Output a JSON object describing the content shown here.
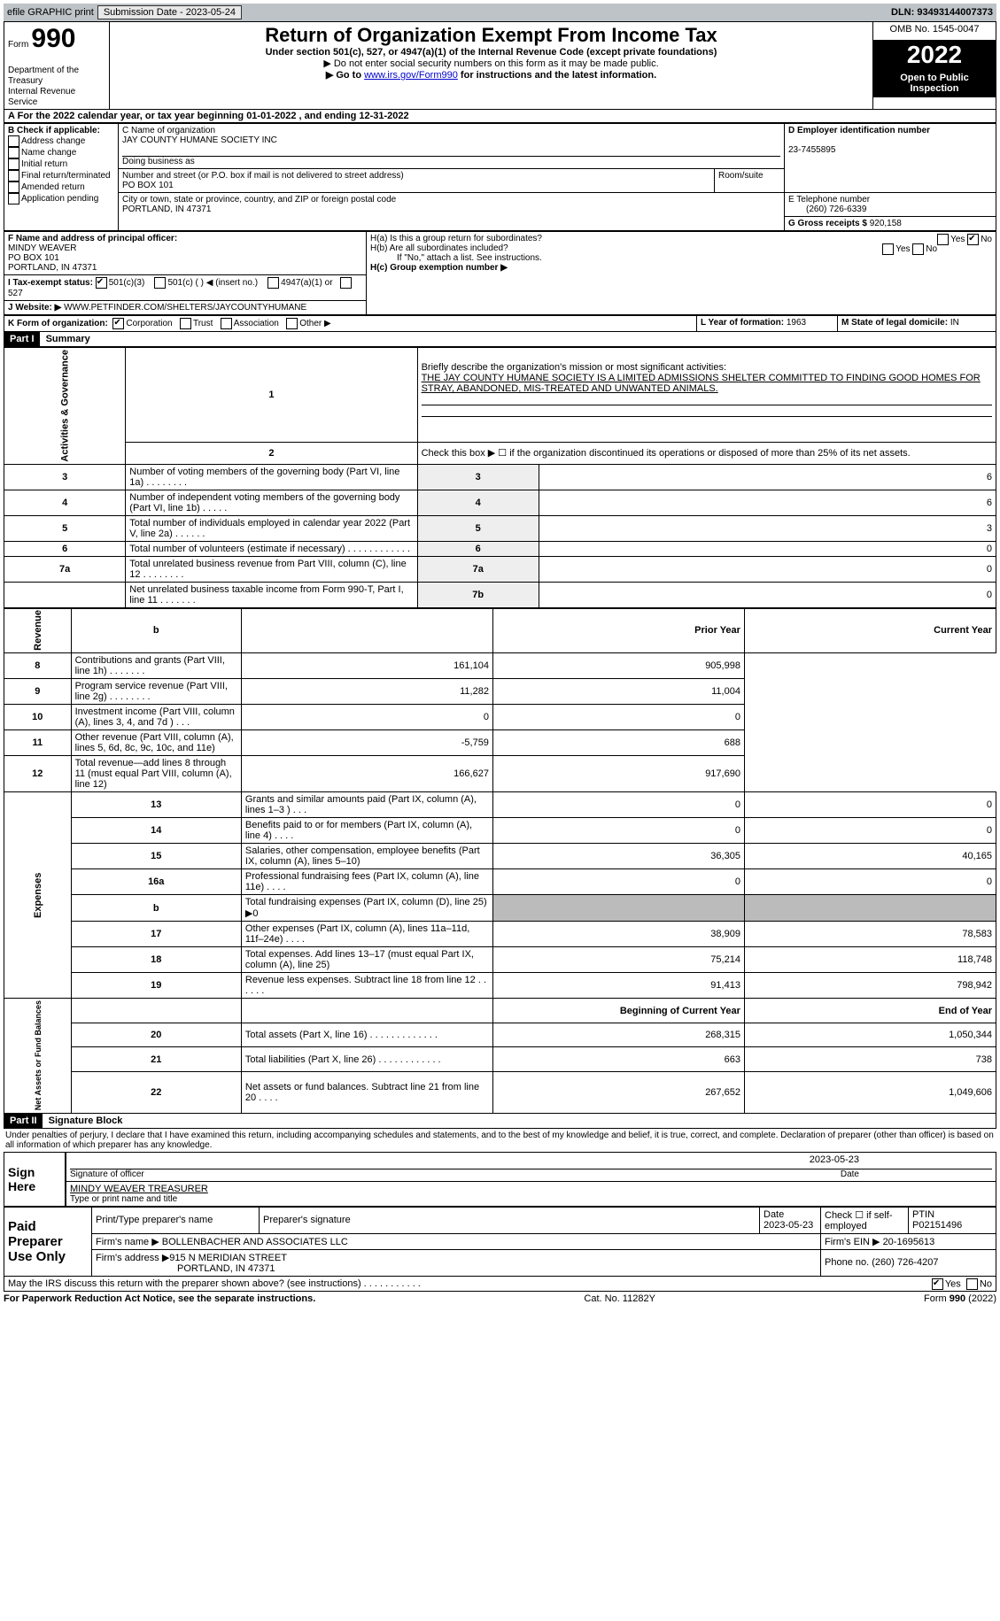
{
  "topbar": {
    "efile": "efile GRAPHIC print",
    "sub_label": "Submission Date - ",
    "sub_date": "2023-05-24",
    "dln_label": "DLN: ",
    "dln": "93493144007373"
  },
  "header": {
    "form_label": "Form",
    "form_num": "990",
    "dept": "Department of the Treasury",
    "irs": "Internal Revenue Service",
    "title": "Return of Organization Exempt From Income Tax",
    "subtitle": "Under section 501(c), 527, or 4947(a)(1) of the Internal Revenue Code (except private foundations)",
    "note1": "▶ Do not enter social security numbers on this form as it may be made public.",
    "note2_pre": "▶ Go to ",
    "note2_link": "www.irs.gov/Form990",
    "note2_post": " for instructions and the latest information.",
    "omb": "OMB No. 1545-0047",
    "year": "2022",
    "open": "Open to Public Inspection"
  },
  "lineA": "A For the 2022 calendar year, or tax year beginning 01-01-2022    , and ending 12-31-2022",
  "boxB": {
    "title": "B Check if applicable:",
    "items": [
      "Address change",
      "Name change",
      "Initial return",
      "Final return/terminated",
      "Amended return",
      "Application pending"
    ]
  },
  "boxC": {
    "name_label": "C Name of organization",
    "name": "JAY COUNTY HUMANE SOCIETY INC",
    "dba": "Doing business as",
    "addr_label": "Number and street (or P.O. box if mail is not delivered to street address)",
    "room": "Room/suite",
    "addr": "PO BOX 101",
    "city_label": "City or town, state or province, country, and ZIP or foreign postal code",
    "city": "PORTLAND, IN  47371"
  },
  "boxD": {
    "label": "D Employer identification number",
    "ein": "23-7455895"
  },
  "boxE": {
    "label": "E Telephone number",
    "phone": "(260) 726-6339"
  },
  "boxG": {
    "label": "G Gross receipts $ ",
    "amt": "920,158"
  },
  "boxF": {
    "label": "F  Name and address of principal officer:",
    "name": "MINDY WEAVER",
    "addr1": "PO BOX 101",
    "addr2": "PORTLAND, IN  47371"
  },
  "boxH": {
    "a": "H(a)  Is this a group return for subordinates?",
    "b": "H(b)  Are all subordinates included?",
    "note": "If \"No,\" attach a list. See instructions.",
    "c": "H(c)  Group exemption number ▶",
    "yes": "Yes",
    "no": "No"
  },
  "boxI": {
    "label": "I   Tax-exempt status:",
    "i1": "501(c)(3)",
    "i2": "501(c) (  ) ◀ (insert no.)",
    "i3": "4947(a)(1) or",
    "i4": "527"
  },
  "boxJ": {
    "label": "J  Website: ▶",
    "url": "  WWW.PETFINDER.COM/SHELTERS/JAYCOUNTYHUMANE"
  },
  "boxK": {
    "label": "K Form of organization:",
    "k1": "Corporation",
    "k2": "Trust",
    "k3": "Association",
    "k4": "Other ▶"
  },
  "boxL": {
    "label": "L Year of formation: ",
    "val": "1963"
  },
  "boxM": {
    "label": "M State of legal domicile: ",
    "val": "IN"
  },
  "part1": {
    "hdr": "Part I",
    "title": "Summary"
  },
  "summary": {
    "q1": "Briefly describe the organization's mission or most significant activities:",
    "mission": "THE JAY COUNTY HUMANE SOCIETY IS A LIMITED ADMISSIONS SHELTER COMMITTED TO FINDING GOOD HOMES FOR STRAY, ABANDONED, MIS-TREATED AND UNWANTED ANIMALS.",
    "q2": "Check this box ▶ ☐  if the organization discontinued its operations or disposed of more than 25% of its net assets.",
    "rows": [
      {
        "n": "3",
        "t": "Number of voting members of the governing body (Part VI, line 1a)   .     .     .     .     .     .     .     .",
        "b": "3",
        "v": "6"
      },
      {
        "n": "4",
        "t": "Number of independent voting members of the governing body (Part VI, line 1b)   .     .     .     .     .",
        "b": "4",
        "v": "6"
      },
      {
        "n": "5",
        "t": "Total number of individuals employed in calendar year 2022 (Part V, line 2a)   .     .     .     .     .     .",
        "b": "5",
        "v": "3"
      },
      {
        "n": "6",
        "t": "Total number of volunteers (estimate if necessary)     .     .     .     .     .     .     .     .     .     .     .     .",
        "b": "6",
        "v": "0"
      },
      {
        "n": "7a",
        "t": "Total unrelated business revenue from Part VIII, column (C), line 12     .     .     .     .     .     .     .     .",
        "b": "7a",
        "v": "0"
      },
      {
        "n": "",
        "t": "Net unrelated business taxable income from Form 990-T, Part I, line 11   .     .     .     .     .     .     .",
        "b": "7b",
        "v": "0"
      }
    ]
  },
  "revenue": {
    "side": "Revenue",
    "prior": "Prior Year",
    "current": "Current Year",
    "b": "b",
    "rows": [
      {
        "n": "8",
        "t": "Contributions and grants (Part VIII, line 1h)     .     .     .     .     .     .     .",
        "p": "161,104",
        "c": "905,998"
      },
      {
        "n": "9",
        "t": "Program service revenue (Part VIII, line 2g)   .     .     .     .     .     .     .     .",
        "p": "11,282",
        "c": "11,004"
      },
      {
        "n": "10",
        "t": "Investment income (Part VIII, column (A), lines 3, 4, and 7d )     .     .     .",
        "p": "0",
        "c": "0"
      },
      {
        "n": "11",
        "t": "Other revenue (Part VIII, column (A), lines 5, 6d, 8c, 9c, 10c, and 11e)",
        "p": "-5,759",
        "c": "688"
      },
      {
        "n": "12",
        "t": "Total revenue—add lines 8 through 11 (must equal Part VIII, column (A), line 12)",
        "p": "166,627",
        "c": "917,690"
      }
    ]
  },
  "expenses": {
    "side": "Expenses",
    "rows": [
      {
        "n": "13",
        "t": "Grants and similar amounts paid (Part IX, column (A), lines 1–3 )   .     .     .",
        "p": "0",
        "c": "0"
      },
      {
        "n": "14",
        "t": "Benefits paid to or for members (Part IX, column (A), line 4)   .     .     .     .",
        "p": "0",
        "c": "0"
      },
      {
        "n": "15",
        "t": "Salaries, other compensation, employee benefits (Part IX, column (A), lines 5–10)",
        "p": "36,305",
        "c": "40,165"
      },
      {
        "n": "16a",
        "t": "Professional fundraising fees (Part IX, column (A), line 11e)   .     .     .     .",
        "p": "0",
        "c": "0"
      },
      {
        "n": "b",
        "t": "Total fundraising expenses (Part IX, column (D), line 25) ▶0",
        "p": "",
        "c": ""
      },
      {
        "n": "17",
        "t": "Other expenses (Part IX, column (A), lines 11a–11d, 11f–24e)   .     .     .     .",
        "p": "38,909",
        "c": "78,583"
      },
      {
        "n": "18",
        "t": "Total expenses. Add lines 13–17 (must equal Part IX, column (A), line 25)",
        "p": "75,214",
        "c": "118,748"
      },
      {
        "n": "19",
        "t": "Revenue less expenses. Subtract line 18 from line 12   .     .     .     .     .     .",
        "p": "91,413",
        "c": "798,942"
      }
    ]
  },
  "netassets": {
    "side": "Net Assets or Fund Balances",
    "begin": "Beginning of Current Year",
    "end": "End of Year",
    "rows": [
      {
        "n": "20",
        "t": "Total assets (Part X, line 16)   .     .     .     .     .     .     .     .     .     .     .     .     .",
        "p": "268,315",
        "c": "1,050,344"
      },
      {
        "n": "21",
        "t": "Total liabilities (Part X, line 26)     .     .     .     .     .     .     .     .     .     .     .     .",
        "p": "663",
        "c": "738"
      },
      {
        "n": "22",
        "t": "Net assets or fund balances. Subtract line 21 from line 20   .     .     .     .",
        "p": "267,652",
        "c": "1,049,606"
      }
    ]
  },
  "part2": {
    "hdr": "Part II",
    "title": "Signature Block",
    "decl": "Under penalties of perjury, I declare that I have examined this return, including accompanying schedules and statements, and to the best of my knowledge and belief, it is true, correct, and complete. Declaration of preparer (other than officer) is based on all information of which preparer has any knowledge."
  },
  "sign": {
    "here": "Sign Here",
    "sig_label": "Signature of officer",
    "date_label": "Date",
    "sig_date": "2023-05-23",
    "name": "MINDY WEAVER  TREASURER",
    "type_label": "Type or print name and title"
  },
  "paid": {
    "label": "Paid Preparer Use Only",
    "pt_name": "Print/Type preparer's name",
    "prep_sig": "Preparer's signature",
    "date_lbl": "Date",
    "date": "2023-05-23",
    "chk_label": "Check ☐  if self-employed",
    "ptin_lbl": "PTIN",
    "ptin": "P02151496",
    "firm_lbl": "Firm's name    ▶",
    "firm": "BOLLENBACHER AND ASSOCIATES LLC",
    "ein_lbl": "Firm's EIN ▶",
    "ein": "20-1695613",
    "addr_lbl": "Firm's address ▶",
    "addr1": "915 N MERIDIAN STREET",
    "addr2": "PORTLAND, IN  47371",
    "phone_lbl": "Phone no. ",
    "phone": "(260) 726-4207"
  },
  "discuss": "May the IRS discuss this return with the preparer shown above? (see instructions)   .     .     .     .     .     .     .     .     .     .     .",
  "yes": "Yes",
  "no": "No",
  "footer": {
    "left": "For Paperwork Reduction Act Notice, see the separate instructions.",
    "mid": "Cat. No. 11282Y",
    "right": "Form 990 (2022)"
  }
}
